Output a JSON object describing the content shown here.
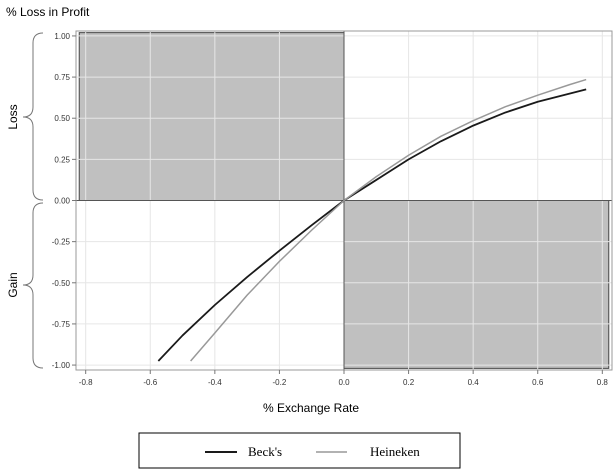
{
  "chart_data": {
    "type": "line",
    "title": "% Loss in Profit",
    "xlabel": "% Exchange Rate",
    "ylabel": "",
    "xlim": [
      -0.83,
      0.83
    ],
    "ylim": [
      -1.03,
      1.03
    ],
    "xticks": [
      "-0.8",
      "-0.6",
      "-0.4",
      "-0.2",
      "0.0",
      "0.2",
      "0.4",
      "0.6",
      "0.8"
    ],
    "yticks": [
      "1.00",
      "0.75",
      "0.50",
      "0.25",
      "0.00",
      "-0.25",
      "-0.50",
      "-0.75",
      "-1.00"
    ],
    "grid": true,
    "shaded_regions": [
      {
        "x": [
          -0.82,
          0.0
        ],
        "y": [
          0.0,
          1.02
        ],
        "color": "#c0c0c0"
      },
      {
        "x": [
          0.0,
          0.82
        ],
        "y": [
          -1.02,
          0.0
        ],
        "color": "#c0c0c0"
      }
    ],
    "brace_labels": {
      "upper": "Loss",
      "lower": "Gain"
    },
    "legend_position": "bottom",
    "series": [
      {
        "name": "Beck's",
        "color": "#1a1a1a",
        "x": [
          -0.575,
          -0.5,
          -0.4,
          -0.3,
          -0.2,
          -0.1,
          0.0,
          0.1,
          0.2,
          0.3,
          0.4,
          0.5,
          0.6,
          0.7,
          0.75
        ],
        "y": [
          -0.975,
          -0.82,
          -0.635,
          -0.465,
          -0.305,
          -0.15,
          0.0,
          0.125,
          0.25,
          0.36,
          0.455,
          0.535,
          0.6,
          0.65,
          0.675
        ]
      },
      {
        "name": "Heineken",
        "color": "#999999",
        "x": [
          -0.475,
          -0.4,
          -0.3,
          -0.2,
          -0.1,
          0.0,
          0.1,
          0.2,
          0.3,
          0.4,
          0.5,
          0.6,
          0.7,
          0.75
        ],
        "y": [
          -0.975,
          -0.805,
          -0.575,
          -0.37,
          -0.18,
          0.0,
          0.145,
          0.275,
          0.39,
          0.485,
          0.57,
          0.64,
          0.705,
          0.735
        ]
      }
    ]
  }
}
